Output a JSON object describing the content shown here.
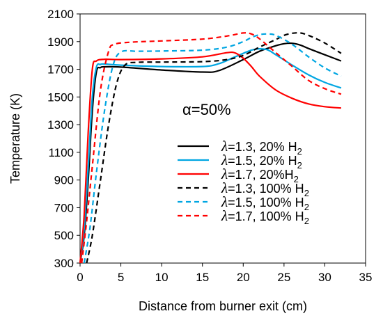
{
  "chart_data": {
    "type": "line",
    "xlabel": "Distance from burner exit (cm)",
    "ylabel": "Temperature (K)",
    "xlim": [
      0,
      35
    ],
    "ylim": [
      300,
      2100
    ],
    "xticks": [
      0,
      5,
      10,
      15,
      20,
      25,
      30,
      35
    ],
    "yticks": [
      300,
      500,
      700,
      900,
      1100,
      1300,
      1500,
      1700,
      1900,
      2100
    ],
    "annotation": "α=50%",
    "grid": false,
    "legend_position": "inside, right-center",
    "series": [
      {
        "name": "λ=1.3, 20% H₂",
        "legend": {
          "lambda": "λ",
          "text": "=1.3, 20% H",
          "sub": "2"
        },
        "color": "#000000",
        "dash": "solid",
        "x": [
          0,
          0.5,
          1.0,
          1.5,
          2.0,
          2.5,
          3.0,
          5,
          10,
          15,
          17,
          20,
          22,
          24,
          25,
          26,
          27,
          28,
          30,
          32
        ],
        "y": [
          300,
          500,
          900,
          1400,
          1680,
          1712,
          1718,
          1716,
          1695,
          1680,
          1690,
          1770,
          1830,
          1870,
          1885,
          1888,
          1875,
          1850,
          1805,
          1760
        ]
      },
      {
        "name": "λ=1.5, 20% H₂",
        "legend": {
          "lambda": "λ",
          "text": "=1.5, 20% H",
          "sub": "2"
        },
        "color": "#00A6E2",
        "dash": "solid",
        "x": [
          0,
          0.5,
          1.0,
          1.5,
          2.0,
          2.5,
          3.0,
          5,
          10,
          15,
          17,
          19,
          21,
          22,
          23,
          24,
          26,
          28,
          30,
          32
        ],
        "y": [
          300,
          550,
          1000,
          1500,
          1715,
          1735,
          1738,
          1730,
          1720,
          1720,
          1740,
          1790,
          1838,
          1848,
          1840,
          1805,
          1730,
          1660,
          1605,
          1565
        ]
      },
      {
        "name": "λ=1.7, 20%H₂",
        "legend": {
          "lambda": "λ",
          "text": "=1.7, 20%H",
          "sub": "2"
        },
        "color": "#FF0000",
        "dash": "solid",
        "x": [
          0,
          0.5,
          1.0,
          1.5,
          2.0,
          3.0,
          5,
          10,
          15,
          18,
          19,
          20,
          21,
          22,
          24,
          26,
          28,
          30,
          32
        ],
        "y": [
          300,
          650,
          1250,
          1700,
          1760,
          1772,
          1770,
          1775,
          1790,
          1820,
          1818,
          1780,
          1720,
          1650,
          1550,
          1490,
          1450,
          1430,
          1420
        ]
      },
      {
        "name": "λ=1.3, 100% H₂",
        "legend": {
          "lambda": "λ",
          "text": "=1.3, 100% H",
          "sub": "2"
        },
        "color": "#000000",
        "dash": "dashed",
        "x": [
          0.8,
          1.5,
          2.5,
          3.5,
          4.5,
          5.5,
          7,
          10,
          15,
          18,
          20,
          22,
          24,
          25,
          26,
          27,
          28,
          30,
          32
        ],
        "y": [
          300,
          500,
          900,
          1300,
          1600,
          1730,
          1750,
          1752,
          1755,
          1770,
          1800,
          1860,
          1915,
          1945,
          1960,
          1962,
          1945,
          1890,
          1815
        ]
      },
      {
        "name": "λ=1.5, 100% H₂",
        "legend": {
          "lambda": "λ",
          "text": "=1.5, 100% H",
          "sub": "2"
        },
        "color": "#00A6E2",
        "dash": "dashed",
        "x": [
          0.5,
          1.2,
          2.0,
          3.0,
          4.0,
          5.0,
          7,
          10,
          15,
          18,
          20,
          21,
          22,
          23,
          24,
          26,
          28,
          30,
          32
        ],
        "y": [
          300,
          550,
          950,
          1400,
          1720,
          1825,
          1830,
          1832,
          1838,
          1860,
          1900,
          1930,
          1950,
          1955,
          1945,
          1880,
          1790,
          1710,
          1650
        ]
      },
      {
        "name": "λ=1.7, 100% H₂",
        "legend": {
          "lambda": "λ",
          "text": "=1.7, 100% H",
          "sub": "2"
        },
        "color": "#FF0000",
        "dash": "dashed",
        "x": [
          0.2,
          0.8,
          1.5,
          2.5,
          3.5,
          4.2,
          6,
          10,
          15,
          18,
          20,
          21,
          22,
          24,
          26,
          28,
          30,
          32
        ],
        "y": [
          300,
          600,
          1000,
          1550,
          1830,
          1880,
          1895,
          1905,
          1918,
          1940,
          1962,
          1955,
          1920,
          1820,
          1720,
          1620,
          1560,
          1520
        ]
      }
    ]
  }
}
